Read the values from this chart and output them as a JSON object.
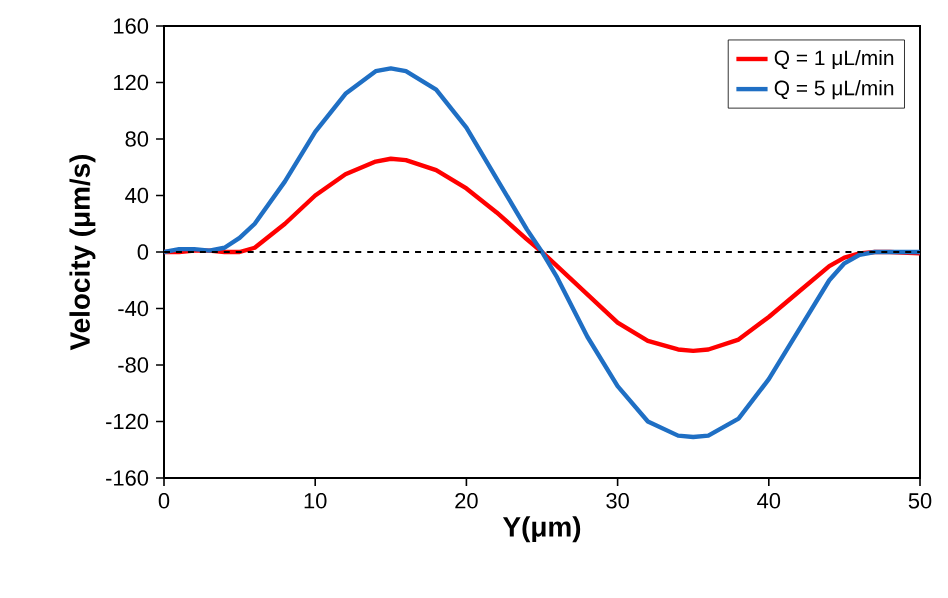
{
  "chart_data": {
    "type": "line",
    "xlabel": "Y(μm)",
    "ylabel": "Velocity (μm/s)",
    "xlim": [
      0,
      50
    ],
    "xticks": [
      0,
      10,
      20,
      30,
      40,
      50
    ],
    "ylim": [
      -160,
      160
    ],
    "yticks": [
      -160,
      -120,
      -80,
      -40,
      0,
      40,
      80,
      120,
      160
    ],
    "grid": false,
    "legend": "top right",
    "marker": "none",
    "line_style": "solid",
    "ref_lines": [
      {
        "axis": "y",
        "value": 0,
        "color": "#000000",
        "line_style": "dashed"
      }
    ],
    "series": [
      {
        "name": "Q = 1 μL/min",
        "color": "#ff0000",
        "x": [
          0,
          1,
          2,
          3,
          4,
          5,
          6,
          8,
          10,
          12,
          14,
          15,
          16,
          18,
          20,
          22,
          24,
          25,
          26,
          28,
          30,
          32,
          34,
          35,
          36,
          38,
          40,
          42,
          44,
          45,
          46,
          47,
          48,
          50
        ],
        "values": [
          0,
          0,
          1,
          1,
          0,
          0,
          3,
          20,
          40,
          55,
          64,
          66,
          65,
          58,
          45,
          28,
          9,
          0,
          -10,
          -30,
          -50,
          -63,
          -69,
          -70,
          -69,
          -62,
          -46,
          -28,
          -10,
          -4,
          -1,
          0,
          0,
          -1
        ]
      },
      {
        "name": "Q = 5 μL/min",
        "color": "#1f6fc4",
        "x": [
          0,
          1,
          2,
          3,
          4,
          5,
          6,
          8,
          10,
          12,
          14,
          15,
          16,
          18,
          20,
          22,
          24,
          25,
          26,
          28,
          30,
          32,
          34,
          35,
          36,
          38,
          40,
          42,
          44,
          45,
          46,
          47,
          48,
          50
        ],
        "values": [
          0,
          2,
          2,
          1,
          3,
          10,
          20,
          50,
          85,
          112,
          128,
          130,
          128,
          115,
          88,
          52,
          16,
          0,
          -18,
          -60,
          -95,
          -120,
          -130,
          -131,
          -130,
          -118,
          -90,
          -55,
          -20,
          -8,
          -2,
          0,
          0,
          0
        ]
      }
    ]
  }
}
